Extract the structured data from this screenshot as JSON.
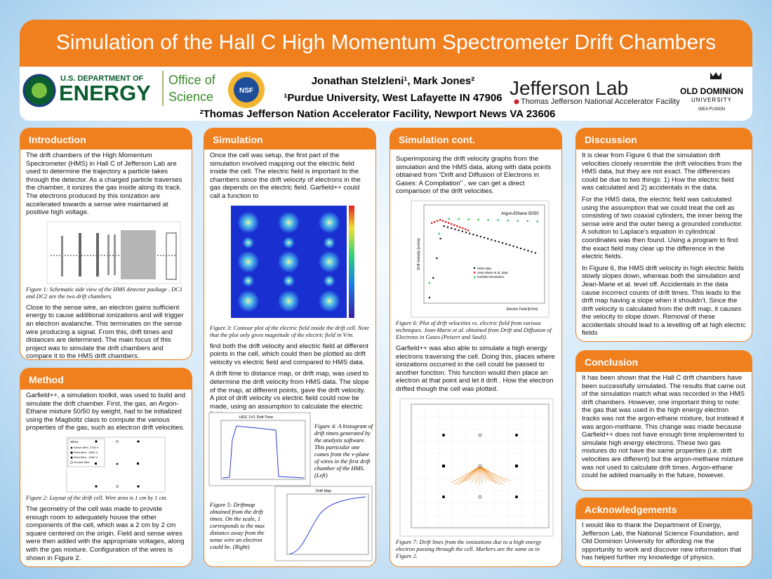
{
  "header": {
    "title": "Simulation of the Hall C High Momentum Spectrometer Drift Chambers",
    "logos": {
      "doe_top": "U.S. DEPARTMENT OF",
      "doe_main": "ENERGY",
      "office_1": "Office of",
      "office_2": "Science",
      "nsf": "NSF",
      "jlab": "Jefferson Lab",
      "jlab_sub": "Thomas Jefferson National Accelerator Facility",
      "odu_1": "OLD DOMINION",
      "odu_2": "UNIVERSITY",
      "odu_3": "IDEA FUSION"
    },
    "authors": "Jonathan Stelzleni¹, Mark Jones²",
    "affiliation_1": "¹Purdue University, West Lafayette IN 47906",
    "affiliation_2": "²Thomas Jefferson Nation Accelerator Facility, Newport News VA 23606"
  },
  "introduction": {
    "title": "Introduction",
    "paragraphs": [
      "The drift chambers of the High Momentum Spectrometer (HMS) in Hall C of Jefferson Lab are used to determine the trajectory a particle takes through the detector. As a charged particle traverses the chamber, it ionizes the gas inside along its track. The electrons produced by this ionization are accelerated towards a sense wire maintained at positive high voltage.",
      "Close to the sense wire, an electron gains sufficient energy to cause additional ionizations and will trigger an electron avalanche. This terminates on the sense wire producing a signal. From this, drift times and distances are determined. The main focus of this project was to simulate the drift chambers and compare it to the HMS drift chambers."
    ],
    "figure_caption": "Figure 1: Schematic side view of the HMS detector package . DC1 and DC2 are the two drift chambers."
  },
  "method": {
    "title": "Method",
    "paragraphs": [
      "Garfield++, a simulation toolkit, was used to build and simulate the drift chamber. First, the gas, an Argon-Ethane mixture 50/50 by weight, had to be initialized using the Magboltz class to compute the various properties of the gas, such as electron drift velocities.",
      "The geometry of the cell was made to provide enough room to adequately house the other components of the cell, which was a 2 cm by 2 cm square centered on the origin. Field and sense wires were then added with the appropriate voltages, along with the gas mixture. Configuration of the wires is shown in Figure 2."
    ],
    "figure_caption": "Figure 2: Layout of the drift cell. Wire area is 1 cm by 1 cm.",
    "figure_legend": [
      "Wires",
      "Sense Wire, 2700 V",
      "Field Wire, -2600 V",
      "Field Wire, -1900 V",
      "Ground Wire"
    ]
  },
  "simulation": {
    "title": "Simulation",
    "paragraphs": [
      "Once the cell was setup, the first part of the simulation involved mapping out the electric field inside the cell. The electric field is important to the chambers since the drift velocity of electrons in the gas depends on the electric field. Garfield++ could call a function to",
      "find both the drift velocity and electric field at different points in the cell, which could then be plotted as drift velocity vs electric field and compared to HMS data.",
      "A drift time to distance map, or drift map, was used to determine the drift velocity from HMS data. The slope of the map, at different points, gave the drift velocity. A plot of drift velocity vs electric field could now be made, using an assumption to calculate the electric field."
    ],
    "figure3_caption": "Figure 3: Contour plot of the electric field inside the drift cell. Note that the plot only gives magnitude of the electric field in V/m.",
    "figure4_title": "HDC 1V1 Drift Time",
    "figure4_caption": "Figure 4: A histogram of drift times generated by the analysis software. This particular one comes from the v-plane of wires in the first drift chamber of the HMS. (Left)",
    "figure5_title": "Drift Map",
    "figure5_caption": "Figure 5: Driftmap obtained from the drift times. On the scale, 1 corresponds to the max distance away from the sense wire an electron could be. (Right)"
  },
  "simulation_cont": {
    "title": "Simulation cont.",
    "paragraphs": [
      "Superimposing the drift velocity graphs from the simulation and the HMS data, along with data points obtained from “Drift and Diffusion of Electrons in Gases: A Compilation” , we can get a direct comparison of the drift velocities.",
      "Garfield++ was also able to simulate a high energy electrons traversing the cell. Doing this, places where ionizations occurred in the cell could be passed to another function. This function would then place an electron at that point and let it drift . How the electron drifted though the cell was plotted."
    ],
    "figure6_label": "Argon-Ethane 50/50",
    "figure6_x_label": "Electric Field [kV/m]",
    "figure6_y_label": "Drift Velocity [cm/ns]",
    "figure6_legend": [
      "HMS data",
      "Jean-Marie et al. data",
      "Garfield Simulation"
    ],
    "figure6_caption": "Figure 6: Plot of drift velocities vs. electric field from various techniques. Jean-Marie et al. obtained from Drift and Diffusion of Electrons in Gases (Peisert and Sauli).",
    "figure7_caption": "Figure 7: Drift lines from the ionizations due to a high energy electron passing through the cell. Markers are the same as in Figure 2."
  },
  "discussion": {
    "title": "Discussion",
    "paragraphs": [
      "It is clear from Figure 6 that the simulation drift velocities closely resemble the drift velocities from the HMS data, but they are not exact. The differences could be due to two things: 1) How the electric field was calculated and 2) accidentals in the data.",
      "For the HMS data, the electric field was calculated using the assumption that we could treat the cell as consisting of two coaxial cylinders, the inner being the sense wire and the outer being a grounded conductor. A solution to Laplace’s equation in cylindrical coordinates was then found. Using a program to find the exact field may clear up the difference in the electric fields.",
      "In Figure 6, the HMS drift velocity in high electric fields slowly slopes down, whereas both the simulation and Jean-Marie et al. level off. Accidentals in the data cause incorrect counts of drift times. This leads to the drift map having a slope when it shouldn’t. Since the drift velocity is calculated from the drift map, it causes the velocity to slope down. Removal of these accidentals should lead to a levelling off at high electric fields"
    ]
  },
  "conclusion": {
    "title": "Conclusion",
    "paragraphs": [
      "It has been shown that the Hall C drift chambers have been successfully simulated. The results that came out of the simulation match what was recorded in the HMS drift chambers. However, one important thing to note: the gas that was used in the high energy electron tracks was not the argon-ethane mixture, but instead it was argon-methane. This change was made because Garfield++ does not have enough time implemented to simulate high energy electrons. These two gas mixtures do not have the same properties (i.e. drift velocities are different) but the argon-methane mixture was not used to calculate drift times. Argon-ethane could be added manually in the future, however."
    ]
  },
  "acknowledgements": {
    "title": "Acknowledgements",
    "paragraphs": [
      "I would like to thank the Department of Energy, Jefferson Lab, the National Science Foundation, and Old Dominion University for affording me the opportunity to work and discover new information that has helped further my knowledge of physics."
    ]
  }
}
